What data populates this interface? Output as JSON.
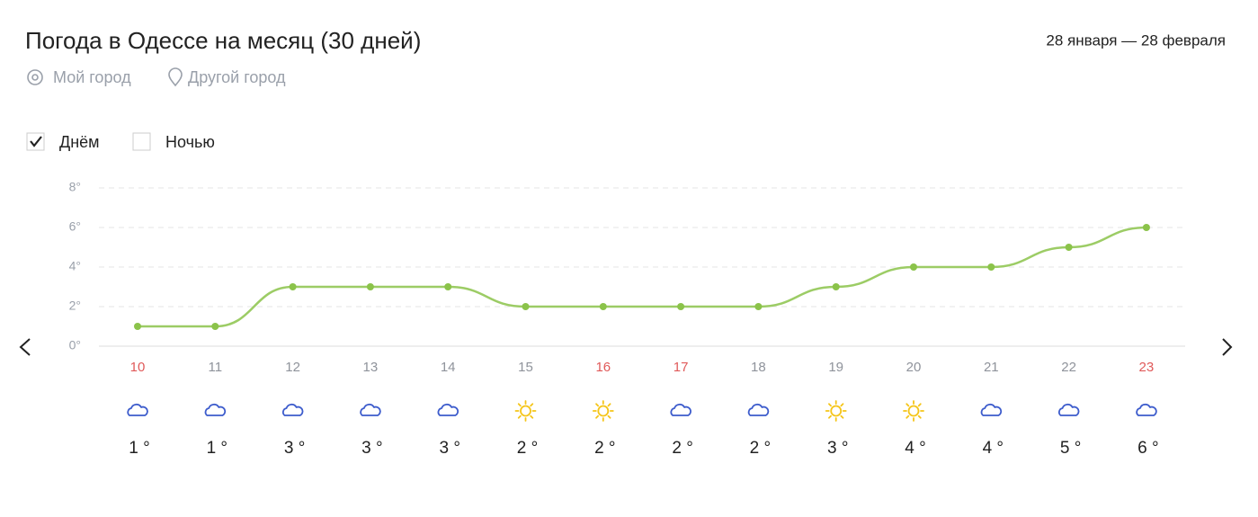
{
  "header": {
    "title": "Погода в Одессе на месяц (30 дней)",
    "period": "28 января — 28 февраля",
    "links": [
      "Мой город",
      "Другой город"
    ]
  },
  "options": [
    {
      "label": "Днём",
      "checked": true
    },
    {
      "label": "Ночью",
      "checked": false
    }
  ],
  "chart_data": {
    "type": "line",
    "categories": [
      "10",
      "11",
      "12",
      "13",
      "14",
      "15",
      "16",
      "17",
      "18",
      "19",
      "20",
      "21",
      "22",
      "23"
    ],
    "category_colors": [
      "#e05a5a",
      "#8f939b",
      "#8f939b",
      "#8f939b",
      "#8f939b",
      "#8f939b",
      "#e05a5a",
      "#e05a5a",
      "#8f939b",
      "#8f939b",
      "#8f939b",
      "#8f939b",
      "#8f939b",
      "#e05a5a"
    ],
    "icons": [
      "cloud",
      "cloud",
      "cloud",
      "cloud",
      "cloud",
      "sun",
      "sun",
      "cloud",
      "cloud",
      "sun",
      "sun",
      "cloud",
      "cloud",
      "cloud"
    ],
    "values": [
      1,
      1,
      3,
      3,
      3,
      2,
      2,
      2,
      2,
      3,
      4,
      4,
      5,
      6
    ],
    "value_labels": [
      "1 °",
      "1 °",
      "3 °",
      "3 °",
      "3 °",
      "2 °",
      "2 °",
      "2 °",
      "2 °",
      "3 °",
      "4 °",
      "4 °",
      "5 °",
      "6 °"
    ],
    "color": "#9ccc65",
    "point_color": "#8bc34a",
    "ylim": [
      0,
      8
    ],
    "yticks": [
      {
        "value": 0,
        "label": "0°"
      },
      {
        "value": 2,
        "label": "2°"
      },
      {
        "value": 4,
        "label": "4°"
      },
      {
        "value": 6,
        "label": "6°"
      },
      {
        "value": 8,
        "label": "8°"
      }
    ],
    "grid": true
  }
}
